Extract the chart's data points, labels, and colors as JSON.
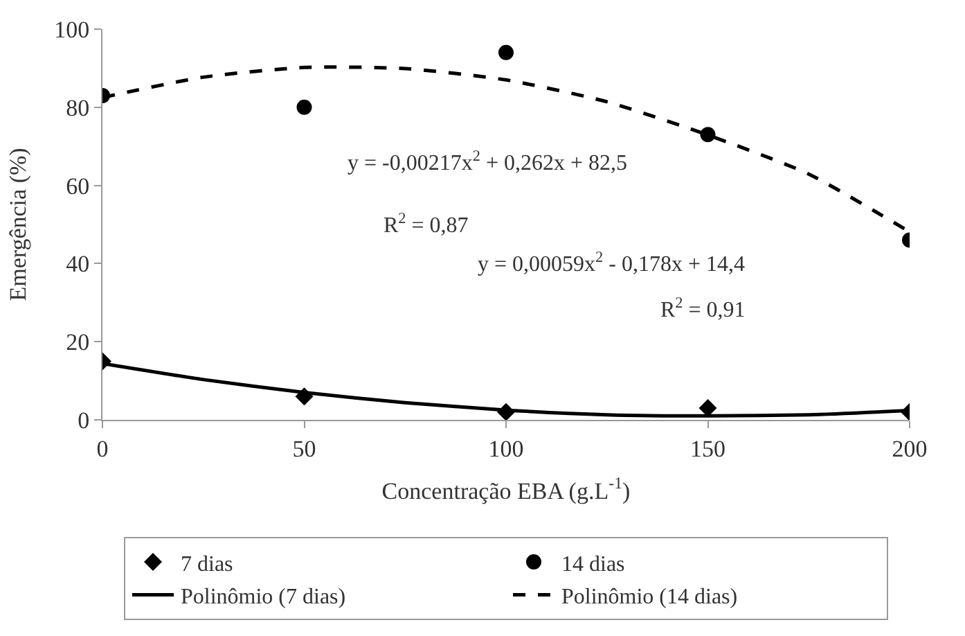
{
  "chart_data": {
    "type": "scatter",
    "xlabel": "Concentração EBA (g.L$^{-1}$)",
    "ylabel": "Emergência (%)",
    "x": [
      0,
      50,
      100,
      150,
      200
    ],
    "series": [
      {
        "name": "7 dias",
        "marker": "diamond",
        "color": "#000000",
        "values": [
          15,
          6,
          2,
          3,
          2
        ]
      },
      {
        "name": "14 dias",
        "marker": "circle",
        "color": "#000000",
        "values": [
          83,
          80,
          94,
          73,
          46
        ]
      },
      {
        "name": "Polinômio (7 dias)",
        "type": "line",
        "line_style": "solid",
        "marker": "none",
        "color": "#000000",
        "x": [
          0,
          25,
          50,
          75,
          100,
          125,
          150,
          175,
          200
        ],
        "values": [
          14.4,
          10.3,
          7,
          4.4,
          2.5,
          1.3,
          1,
          1.3,
          2.4
        ]
      },
      {
        "name": "Polinômio (14 dias)",
        "type": "line",
        "line_style": "dashed",
        "marker": "none",
        "color": "#000000",
        "x": [
          0,
          25,
          50,
          75,
          100,
          125,
          150,
          175,
          200
        ],
        "values": [
          82.5,
          87.7,
          90.2,
          89.9,
          87,
          81.4,
          72.9,
          62.9,
          48.1
        ]
      }
    ],
    "annotations": [
      "y = -0,00217x$^{2}$ + 0,262x + 82,5",
      "R$^{2}$ = 0,87",
      "y = 0,00059x$^{2}$ - 0,178x + 14,4",
      "R$^{2}$ = 0,91"
    ],
    "xlim": [
      0,
      200
    ],
    "xticks": [
      0,
      50,
      100,
      150,
      200
    ],
    "ylim": [
      0,
      100
    ],
    "yticks": [
      0,
      20,
      40,
      60,
      80,
      100
    ],
    "legend": "bottom"
  }
}
